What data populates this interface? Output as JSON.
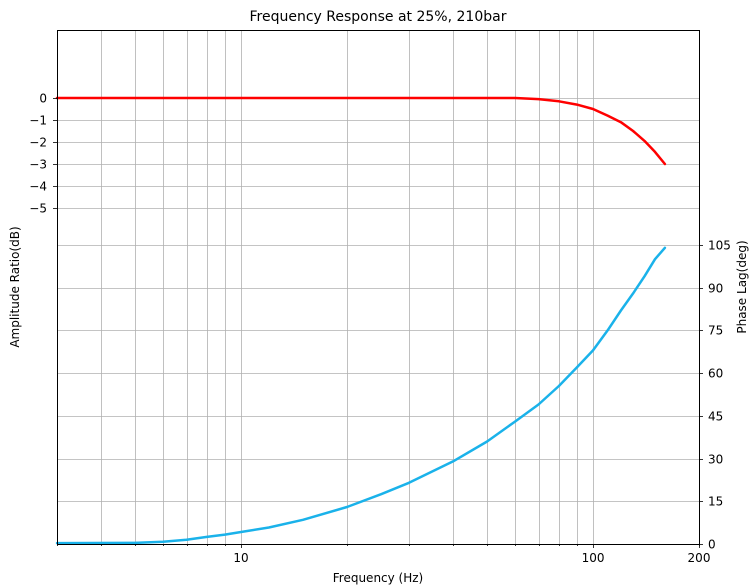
{
  "chart_data": {
    "type": "line",
    "title": "Frequency Response at 25%, 210bar",
    "xlabel": "Frequency (Hz)",
    "ylabel_left": "Amplitude Ratio(dB)",
    "ylabel_right": "Phase Lag(deg)",
    "x_scale": "log",
    "xlim": [
      3,
      200
    ],
    "x_ticks": [
      10,
      100,
      200
    ],
    "x_tick_labels": [
      "10",
      "100",
      "200"
    ],
    "grid": true,
    "amplitude_axis": {
      "ticks": [
        0,
        -1,
        -2,
        -3,
        -4,
        -5
      ],
      "tick_labels": [
        "0",
        "−1",
        "−2",
        "−3",
        "−4",
        "−5"
      ]
    },
    "phase_axis": {
      "ticks": [
        0,
        15,
        30,
        45,
        60,
        75,
        90,
        105
      ],
      "tick_labels": [
        "0",
        "15",
        "30",
        "45",
        "60",
        "75",
        "90",
        "105"
      ]
    },
    "series": [
      {
        "axis": "amplitude",
        "color": "#ff0000",
        "x": [
          3,
          5,
          10,
          20,
          30,
          40,
          50,
          60,
          70,
          80,
          90,
          100,
          110,
          120,
          130,
          140,
          150,
          160
        ],
        "y": [
          0,
          0,
          0,
          0,
          0,
          0,
          0,
          0,
          -0.05,
          -0.15,
          -0.3,
          -0.5,
          -0.8,
          -1.1,
          -1.5,
          -1.95,
          -2.45,
          -3.0
        ]
      },
      {
        "axis": "phase",
        "color": "#1ab2ea",
        "x": [
          3,
          5,
          6,
          7,
          8,
          9,
          10,
          12,
          15,
          20,
          25,
          30,
          40,
          50,
          60,
          70,
          80,
          90,
          100,
          110,
          120,
          130,
          140,
          150,
          160
        ],
        "y": [
          0.3,
          0.4,
          0.8,
          1.5,
          2.5,
          3.3,
          4.2,
          5.8,
          8.5,
          13,
          17.5,
          21.5,
          29,
          36,
          43,
          49,
          55.5,
          62,
          68,
          75,
          82,
          88,
          94,
          100,
          104
        ]
      }
    ]
  }
}
